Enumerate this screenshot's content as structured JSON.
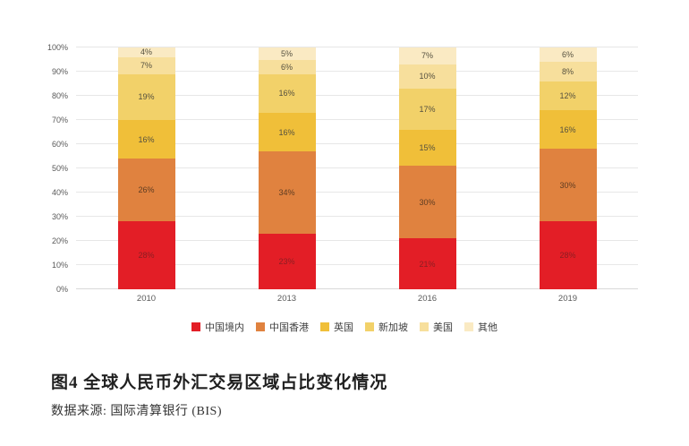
{
  "figure": {
    "title": "图4 全球人民币外汇交易区域占比变化情况",
    "source": "数据来源: 国际清算银行 (BIS)"
  },
  "chart_data": {
    "type": "bar",
    "stacked": true,
    "title": "",
    "xlabel": "",
    "ylabel": "",
    "ylim": [
      0,
      100
    ],
    "grid": true,
    "legend_position": "bottom",
    "y_ticks": [
      "0%",
      "10%",
      "20%",
      "30%",
      "40%",
      "50%",
      "60%",
      "70%",
      "80%",
      "90%",
      "100%"
    ],
    "categories": [
      "2010",
      "2013",
      "2016",
      "2019"
    ],
    "series": [
      {
        "name": "中国境内",
        "color": "#E31E26",
        "label_color": "#8C1E23",
        "values": [
          28,
          23,
          21,
          28
        ]
      },
      {
        "name": "中国香港",
        "color": "#E0823F",
        "label_color": "#5d3c22",
        "values": [
          26,
          34,
          30,
          30
        ]
      },
      {
        "name": "英国",
        "color": "#F0BF39",
        "label_color": "#55503f",
        "values": [
          16,
          16,
          15,
          16
        ]
      },
      {
        "name": "新加坡",
        "color": "#F2D169",
        "label_color": "#55503f",
        "values": [
          19,
          16,
          17,
          12
        ]
      },
      {
        "name": "美国",
        "color": "#F7DF9C",
        "label_color": "#55503f",
        "values": [
          7,
          6,
          10,
          8
        ]
      },
      {
        "name": "其他",
        "color": "#FAEAC3",
        "label_color": "#55503f",
        "values": [
          4,
          5,
          7,
          6
        ]
      }
    ],
    "data_label_format": "{v}%"
  }
}
